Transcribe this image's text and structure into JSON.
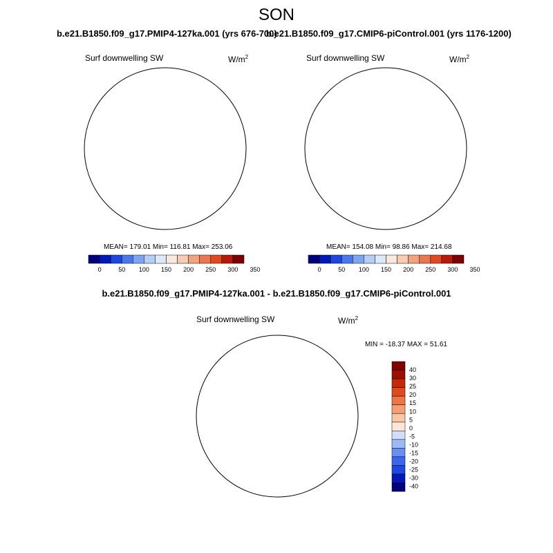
{
  "figure": {
    "title": "SON",
    "variable": "Surf downwelling SW",
    "units_base": "W/m",
    "units_exp": "2"
  },
  "colors": {
    "abs_scale": [
      "#00007f",
      "#0019b8",
      "#1e46e0",
      "#4a78ec",
      "#7ea5f2",
      "#b4cef8",
      "#dce9fb",
      "#fbe8dc",
      "#f8ccb0",
      "#f2a27e",
      "#ec7650",
      "#e04a1e",
      "#b8190b",
      "#7f0000"
    ],
    "diff_scale": [
      "#000080",
      "#0019b8",
      "#1e46e0",
      "#3d66ee",
      "#6a8ff2",
      "#9cb9f6",
      "#cfdff8",
      "#fbe6d6",
      "#f8c8a6",
      "#f3a074",
      "#ee7646",
      "#e04a1e",
      "#c52a08",
      "#9f0f00",
      "#800000"
    ],
    "coast": "#111111"
  },
  "panels": [
    {
      "id": "pmip4",
      "title": "b.e21.B1850.f09_g17.PMIP4-127ka.001 (yrs 676-700)",
      "stats": "MEAN= 179.01  Min= 116.81  Max= 253.06"
    },
    {
      "id": "picontrol",
      "title": "b.e21.B1850.f09_g17.CMIP6-piControl.001 (yrs 1176-1200)",
      "stats": "MEAN= 154.08  Min=  98.86  Max= 214.68"
    }
  ],
  "difference": {
    "title": "b.e21.B1850.f09_g17.PMIP4-127ka.001 - b.e21.B1850.f09_g17.CMIP6-piControl.001",
    "stats": "MIN = -18.37 MAX =  51.61"
  },
  "chart_data": [
    {
      "type": "heatmap",
      "title": "b.e21.B1850.f09_g17.PMIP4-127ka.001 (yrs 676-700)",
      "subtitle": "Surf downwelling SW",
      "units": "W/m^2",
      "projection": "south polar stereographic",
      "mean": 179.01,
      "min": 116.81,
      "max": 253.06,
      "colorbar_ticks": [
        0,
        50,
        100,
        150,
        200,
        250,
        300,
        350
      ],
      "colorbar_levels": [
        0,
        25,
        50,
        75,
        100,
        125,
        150,
        175,
        200,
        225,
        250,
        275,
        300,
        325,
        350
      ]
    },
    {
      "type": "heatmap",
      "title": "b.e21.B1850.f09_g17.CMIP6-piControl.001 (yrs 1176-1200)",
      "subtitle": "Surf downwelling SW",
      "units": "W/m^2",
      "projection": "south polar stereographic",
      "mean": 154.08,
      "min": 98.86,
      "max": 214.68,
      "colorbar_ticks": [
        0,
        50,
        100,
        150,
        200,
        250,
        300,
        350
      ],
      "colorbar_levels": [
        0,
        25,
        50,
        75,
        100,
        125,
        150,
        175,
        200,
        225,
        250,
        275,
        300,
        325,
        350
      ]
    },
    {
      "type": "heatmap",
      "title": "b.e21.B1850.f09_g17.PMIP4-127ka.001 - b.e21.B1850.f09_g17.CMIP6-piControl.001",
      "subtitle": "Surf downwelling SW",
      "units": "W/m^2",
      "projection": "south polar stereographic",
      "min": -18.37,
      "max": 51.61,
      "colorbar_ticks": [
        40,
        30,
        25,
        20,
        15,
        10,
        5,
        0,
        -5,
        -10,
        -15,
        -20,
        -25,
        -30,
        -40
      ]
    }
  ],
  "colorbar_abs_labels": [
    "0",
    "50",
    "100",
    "150",
    "200",
    "250",
    "300",
    "350"
  ],
  "colorbar_diff_labels": [
    "40",
    "30",
    "25",
    "20",
    "15",
    "10",
    "5",
    "0",
    "-5",
    "-10",
    "-15",
    "-20",
    "-25",
    "-30",
    "-40"
  ]
}
